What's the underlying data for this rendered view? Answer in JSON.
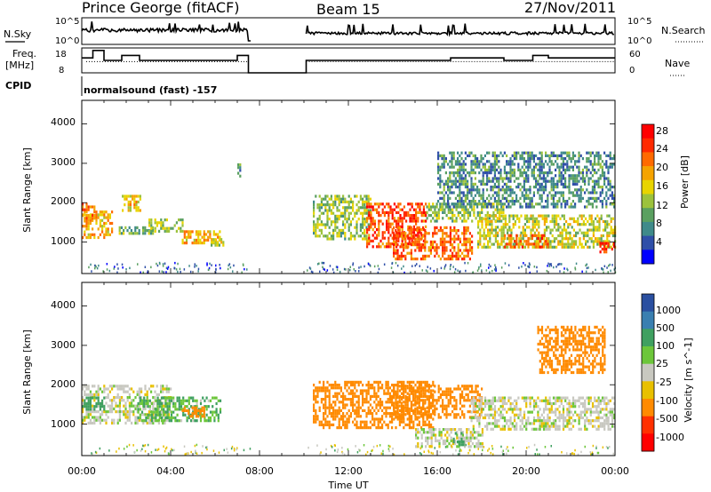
{
  "header": {
    "station": "Prince George (fitACF)",
    "beam": "Beam 15",
    "date": "27/Nov/2011"
  },
  "top_panels": {
    "nsky_label": "N.Sky",
    "nsky_ticks": [
      "10^5",
      "10^0"
    ],
    "nsearch_label": "N.Search",
    "nsearch_ticks": [
      "10^5",
      "10^0"
    ],
    "freq_label_1": "Freq.",
    "freq_label_2": "[MHz]",
    "freq_ticks": [
      "18",
      "8"
    ],
    "nave_label": "Nave",
    "nave_ticks": [
      "60",
      "0"
    ],
    "cpid_label": "CPID",
    "cpid_value": "normalsound (fast) -157"
  },
  "power_panel": {
    "ylabel": "Slant Range [km]",
    "yticks": [
      "4000",
      "3000",
      "2000",
      "1000"
    ],
    "colorbar_label": "Power [dB]",
    "colorbar_ticks": [
      "28",
      "24",
      "20",
      "16",
      "12",
      "8",
      "4"
    ],
    "colors": [
      "#0000ff",
      "#2f4fa8",
      "#3f8a8a",
      "#5aa060",
      "#9cc23c",
      "#e8d400",
      "#f5a300",
      "#ff6a00",
      "#ff2a00",
      "#ff0000"
    ]
  },
  "velocity_panel": {
    "ylabel": "Slant Range [km]",
    "yticks": [
      "4000",
      "3000",
      "2000",
      "1000"
    ],
    "colorbar_label": "Velocity [m s^-1]",
    "colorbar_ticks": [
      "1000",
      "500",
      "100",
      "25",
      "-25",
      "-100",
      "-500",
      "-1000"
    ],
    "colors": [
      "#2a4fa0",
      "#3a7fb0",
      "#3fa060",
      "#6cc63a",
      "#c8c8c0",
      "#e8c000",
      "#ff8a00",
      "#ff3000",
      "#ff0000"
    ]
  },
  "x_axis": {
    "ticks": [
      "00:00",
      "04:00",
      "08:00",
      "12:00",
      "16:00",
      "20:00",
      "00:00"
    ],
    "label": "Time UT"
  },
  "chart_data": {
    "type": "heatmap",
    "title": "Prince George (fitACF)",
    "xlabel": "Time UT",
    "ylabel": "Slant Range [km]",
    "xlim": [
      0,
      24
    ],
    "ylim": [
      200,
      4600
    ],
    "data_gap_hours": [
      7.6,
      10.1
    ],
    "power_db_range": [
      0,
      32
    ],
    "velocity_range": [
      -1200,
      1200
    ],
    "freq_mhz_range": [
      8,
      18
    ],
    "nave_range": [
      0,
      60
    ],
    "freq_steps": [
      {
        "t": 0.0,
        "f": 14
      },
      {
        "t": 0.5,
        "f": 17
      },
      {
        "t": 1.0,
        "f": 13
      },
      {
        "t": 1.8,
        "f": 15
      },
      {
        "t": 2.6,
        "f": 13
      },
      {
        "t": 7.0,
        "f": 15
      },
      {
        "t": 7.5,
        "f": 8
      },
      {
        "t": 10.1,
        "f": 13
      },
      {
        "t": 16.6,
        "f": 14
      },
      {
        "t": 19.0,
        "f": 13
      },
      {
        "t": 20.3,
        "f": 15
      },
      {
        "t": 21.0,
        "f": 14
      },
      {
        "t": 24.0,
        "f": 14
      }
    ],
    "power_patches": [
      {
        "t0": 0.0,
        "t1": 1.4,
        "r0": 1100,
        "r1": 1800,
        "p": 20
      },
      {
        "t0": 0.0,
        "t1": 0.6,
        "r0": 1500,
        "r1": 2000,
        "p": 24
      },
      {
        "t0": 1.4,
        "t1": 3.2,
        "r0": 1200,
        "r1": 1400,
        "p": 12
      },
      {
        "t0": 1.8,
        "t1": 2.6,
        "r0": 1800,
        "r1": 2200,
        "p": 18
      },
      {
        "t0": 3.0,
        "t1": 4.5,
        "r0": 1300,
        "r1": 1600,
        "p": 14
      },
      {
        "t0": 4.5,
        "t1": 6.2,
        "r0": 1000,
        "r1": 1300,
        "p": 20
      },
      {
        "t0": 5.8,
        "t1": 6.5,
        "r0": 950,
        "r1": 1100,
        "p": 16
      },
      {
        "t0": 7.0,
        "t1": 7.1,
        "r0": 2600,
        "r1": 3000,
        "p": 10
      },
      {
        "t0": 10.4,
        "t1": 13.0,
        "r0": 1100,
        "r1": 2200,
        "p": 14
      },
      {
        "t0": 12.8,
        "t1": 15.5,
        "r0": 900,
        "r1": 2000,
        "p": 26
      },
      {
        "t0": 14.0,
        "t1": 17.6,
        "r0": 600,
        "r1": 1400,
        "p": 24
      },
      {
        "t0": 15.5,
        "t1": 19.0,
        "r0": 1500,
        "r1": 2000,
        "p": 14
      },
      {
        "t0": 17.8,
        "t1": 24.0,
        "r0": 900,
        "r1": 1700,
        "p": 16
      },
      {
        "t0": 19.0,
        "t1": 21.0,
        "r0": 900,
        "r1": 1200,
        "p": 24
      },
      {
        "t0": 23.3,
        "t1": 24.0,
        "r0": 750,
        "r1": 1000,
        "p": 28
      },
      {
        "t0": 16.0,
        "t1": 24.0,
        "r0": 1900,
        "r1": 3300,
        "p": 9
      }
    ],
    "velocity_patches": [
      {
        "t0": 0.0,
        "t1": 4.0,
        "r0": 1000,
        "r1": 2000,
        "v": 0
      },
      {
        "t0": 0.0,
        "t1": 1.0,
        "r0": 1400,
        "r1": 1700,
        "v": 100
      },
      {
        "t0": 2.5,
        "t1": 6.2,
        "r0": 1100,
        "r1": 1700,
        "v": 60
      },
      {
        "t0": 4.5,
        "t1": 5.5,
        "r0": 1200,
        "r1": 1450,
        "v": -150
      },
      {
        "t0": 10.4,
        "t1": 15.8,
        "r0": 900,
        "r1": 2100,
        "v": -200
      },
      {
        "t0": 14.0,
        "t1": 18.0,
        "r0": 1200,
        "r1": 2000,
        "v": -200
      },
      {
        "t0": 15.0,
        "t1": 18.0,
        "r0": 400,
        "r1": 900,
        "v": 0
      },
      {
        "t0": 16.7,
        "t1": 17.2,
        "r0": 450,
        "r1": 800,
        "v": 150
      },
      {
        "t0": 17.5,
        "t1": 24.0,
        "r0": 900,
        "r1": 1700,
        "v": 0
      },
      {
        "t0": 20.5,
        "t1": 23.5,
        "r0": 2300,
        "r1": 3500,
        "v": -150
      }
    ]
  }
}
